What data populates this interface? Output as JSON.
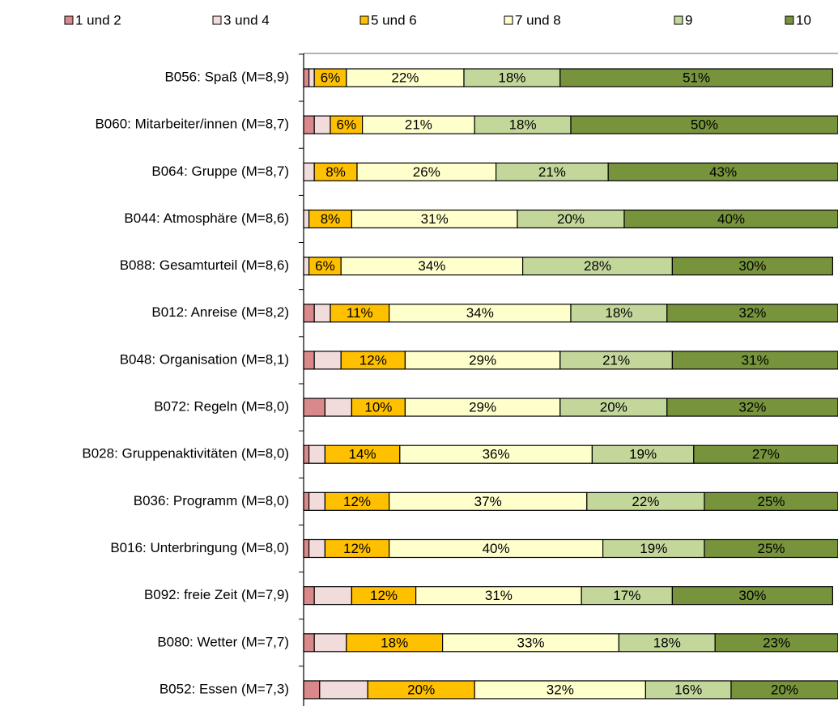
{
  "chart_data": {
    "type": "stacked_barh",
    "categories": [
      "B056: Spaß (M=8,9)",
      "B060: Mitarbeiter/innen (M=8,7)",
      "B064: Gruppe (M=8,7)",
      "B044: Atmosphäre (M=8,6)",
      "B088: Gesamturteil (M=8,6)",
      "B012: Anreise (M=8,2)",
      "B048: Organisation (M=8,1)",
      "B072: Regeln (M=8,0)",
      "B028: Gruppenaktivitäten (M=8,0)",
      "B036: Programm (M=8,0)",
      "B016: Unterbringung (M=8,0)",
      "B092: freie Zeit (M=7,9)",
      "B080: Wetter (M=7,7)",
      "B052: Essen (M=7,3)"
    ],
    "series": [
      {
        "name": "1 und 2",
        "color": "#d9898a",
        "values": [
          1,
          2,
          0,
          0,
          0,
          2,
          2,
          4,
          1,
          1,
          1,
          2,
          2,
          3
        ]
      },
      {
        "name": "3 und 4",
        "color": "#f2dcdb",
        "values": [
          1,
          3,
          2,
          1,
          1,
          3,
          5,
          5,
          3,
          3,
          3,
          7,
          6,
          9
        ]
      },
      {
        "name": "5 und 6",
        "color": "#ffc000",
        "values": [
          6,
          6,
          8,
          8,
          6,
          11,
          12,
          10,
          14,
          12,
          12,
          12,
          18,
          20
        ],
        "value_labels": [
          "6%",
          "6%",
          "8%",
          "8%",
          "6%",
          "11%",
          "12%",
          "10%",
          "14%",
          "12%",
          "12%",
          "12%",
          "18%",
          "20%"
        ]
      },
      {
        "name": "7 und 8",
        "color": "#ffffcc",
        "values": [
          22,
          21,
          26,
          31,
          34,
          34,
          29,
          29,
          36,
          37,
          40,
          31,
          33,
          32
        ],
        "value_labels": [
          "22%",
          "21%",
          "26%",
          "31%",
          "34%",
          "34%",
          "29%",
          "29%",
          "36%",
          "37%",
          "40%",
          "31%",
          "33%",
          "32%"
        ]
      },
      {
        "name": "9",
        "color": "#c4d79b",
        "values": [
          18,
          18,
          21,
          20,
          28,
          18,
          21,
          20,
          19,
          22,
          19,
          17,
          18,
          16
        ],
        "value_labels": [
          "18%",
          "18%",
          "21%",
          "20%",
          "28%",
          "18%",
          "21%",
          "20%",
          "19%",
          "22%",
          "19%",
          "17%",
          "18%",
          "16%"
        ]
      },
      {
        "name": "10",
        "color": "#77933c",
        "values": [
          51,
          50,
          43,
          40,
          30,
          32,
          31,
          32,
          27,
          25,
          25,
          30,
          23,
          20
        ],
        "value_labels": [
          "51%",
          "50%",
          "43%",
          "40%",
          "30%",
          "32%",
          "31%",
          "32%",
          "27%",
          "25%",
          "25%",
          "30%",
          "23%",
          "20%"
        ]
      }
    ],
    "xlim": [
      0,
      100
    ]
  }
}
